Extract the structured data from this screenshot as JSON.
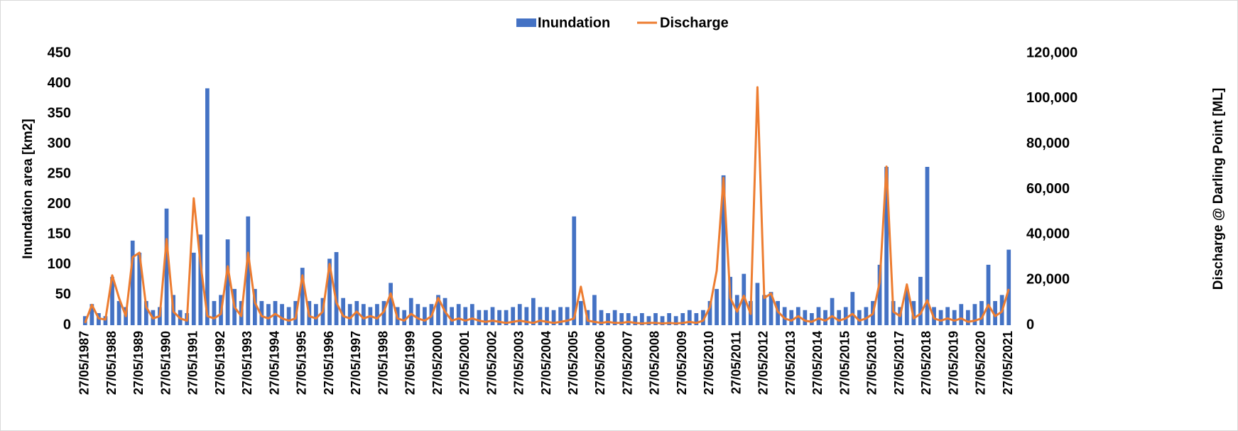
{
  "chart_data": {
    "type": "bar-line",
    "y_label": "Inundation area [km2]",
    "y2_label": "Discharge @ Darling Point [ML]",
    "ylim": [
      0,
      450
    ],
    "yticks": [
      0,
      50,
      100,
      150,
      200,
      250,
      300,
      350,
      400,
      450
    ],
    "y2lim": [
      0,
      120000
    ],
    "y2ticks": [
      0,
      {
        "value": 20000,
        "label": "20,000"
      },
      {
        "value": 40000,
        "label": "40,000"
      },
      {
        "value": 60000,
        "label": "60,000"
      },
      {
        "value": 80000,
        "label": "80,000"
      },
      {
        "value": 100000,
        "label": "100,000"
      },
      {
        "value": 120000,
        "label": "120,000"
      }
    ],
    "legend": "top",
    "categories": [
      "27/05/1987",
      null,
      null,
      null,
      "27/05/1988",
      null,
      null,
      null,
      "27/05/1989",
      null,
      null,
      null,
      "27/05/1990",
      null,
      null,
      null,
      "27/05/1991",
      null,
      null,
      null,
      "27/05/1992",
      null,
      null,
      null,
      "27/05/1993",
      null,
      null,
      null,
      "27/05/1994",
      null,
      null,
      null,
      "27/05/1995",
      null,
      null,
      null,
      "27/05/1996",
      null,
      null,
      null,
      "27/05/1997",
      null,
      null,
      null,
      "27/05/1998",
      null,
      null,
      null,
      "27/05/1999",
      null,
      null,
      null,
      "27/05/2000",
      null,
      null,
      null,
      "27/05/2001",
      null,
      null,
      null,
      "27/05/2002",
      null,
      null,
      null,
      "27/05/2003",
      null,
      null,
      null,
      "27/05/2004",
      null,
      null,
      null,
      "27/05/2005",
      null,
      null,
      null,
      "27/05/2006",
      null,
      null,
      null,
      "27/05/2007",
      null,
      null,
      null,
      "27/05/2008",
      null,
      null,
      null,
      "27/05/2009",
      null,
      null,
      null,
      "27/05/2010",
      null,
      null,
      null,
      "27/05/2011",
      null,
      null,
      null,
      "27/05/2012",
      null,
      null,
      null,
      "27/05/2013",
      null,
      null,
      null,
      "27/05/2014",
      null,
      null,
      null,
      "27/05/2015",
      null,
      null,
      null,
      "27/05/2016",
      null,
      null,
      null,
      "27/05/2017",
      null,
      null,
      null,
      "27/05/2018",
      null,
      null,
      null,
      "27/05/2019",
      null,
      null,
      null,
      "27/05/2020",
      null,
      null,
      null,
      "27/05/2021"
    ],
    "series": [
      {
        "name": "Inundation",
        "type": "bar",
        "axis": "y",
        "color": "#4472c4",
        "values": [
          15,
          35,
          20,
          15,
          80,
          40,
          30,
          140,
          120,
          40,
          25,
          30,
          193,
          50,
          25,
          20,
          120,
          150,
          392,
          40,
          50,
          142,
          60,
          40,
          180,
          60,
          40,
          35,
          40,
          35,
          30,
          40,
          95,
          40,
          35,
          45,
          110,
          121,
          45,
          35,
          40,
          35,
          30,
          35,
          40,
          70,
          30,
          25,
          45,
          35,
          30,
          35,
          50,
          45,
          30,
          35,
          30,
          35,
          25,
          25,
          30,
          25,
          25,
          30,
          35,
          30,
          45,
          30,
          30,
          25,
          30,
          30,
          180,
          40,
          25,
          50,
          25,
          20,
          25,
          20,
          20,
          15,
          20,
          15,
          20,
          15,
          20,
          15,
          20,
          25,
          20,
          25,
          40,
          60,
          248,
          80,
          50,
          85,
          40,
          70,
          50,
          55,
          40,
          30,
          25,
          30,
          25,
          20,
          30,
          25,
          45,
          25,
          30,
          55,
          25,
          30,
          40,
          100,
          262,
          40,
          30,
          60,
          40,
          80,
          262,
          30,
          25,
          30,
          25,
          35,
          25,
          35,
          40,
          100,
          40,
          50,
          125
        ]
      },
      {
        "name": "Discharge",
        "type": "line",
        "axis": "y2",
        "color": "#ed7d31",
        "values": [
          1000,
          9000,
          3000,
          2500,
          22000,
          12000,
          4000,
          30000,
          32000,
          8000,
          3000,
          4000,
          38000,
          6000,
          3000,
          2000,
          56000,
          27000,
          4000,
          3000,
          5000,
          26000,
          8000,
          4000,
          32000,
          10000,
          4000,
          3000,
          5000,
          3000,
          2000,
          3000,
          22000,
          4000,
          3000,
          6000,
          27000,
          10000,
          4000,
          3000,
          6000,
          3000,
          4000,
          3000,
          6000,
          14000,
          3000,
          2000,
          5000,
          3000,
          2000,
          4000,
          12000,
          6000,
          2000,
          3000,
          2000,
          3000,
          2000,
          1500,
          2000,
          1500,
          1000,
          1500,
          2000,
          1500,
          1000,
          2000,
          1500,
          1000,
          1500,
          2000,
          3000,
          17000,
          2000,
          1500,
          1000,
          1500,
          1000,
          1000,
          1500,
          1000,
          800,
          1000,
          1000,
          800,
          1000,
          800,
          1000,
          1500,
          1000,
          2000,
          8000,
          24000,
          65000,
          12000,
          6000,
          13000,
          5000,
          105000,
          12000,
          14000,
          6000,
          3000,
          2000,
          4000,
          2000,
          1500,
          3000,
          2000,
          4000,
          2000,
          3000,
          5000,
          2000,
          3000,
          5000,
          19000,
          70000,
          6000,
          4000,
          18000,
          3000,
          5000,
          11000,
          3000,
          2000,
          3000,
          2000,
          3000,
          1500,
          2000,
          3000,
          9000,
          4000,
          6000,
          16000
        ]
      }
    ]
  }
}
